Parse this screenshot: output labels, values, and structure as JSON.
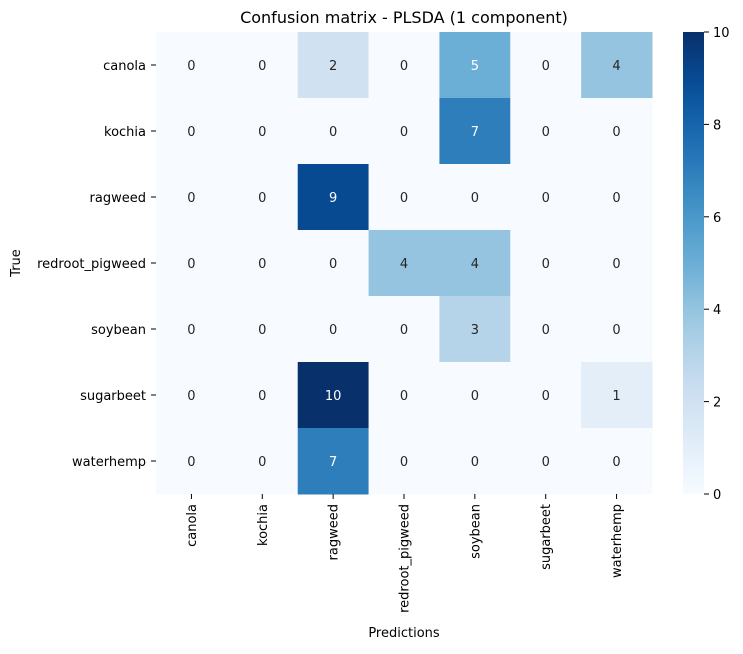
{
  "chart_data": {
    "type": "heatmap",
    "title": "Confusion matrix - PLSDA (1 component)",
    "xlabel": "Predictions",
    "ylabel": "True",
    "x_categories": [
      "canola",
      "kochia",
      "ragweed",
      "redroot_pigweed",
      "soybean",
      "sugarbeet",
      "waterhemp"
    ],
    "y_categories": [
      "canola",
      "kochia",
      "ragweed",
      "redroot_pigweed",
      "soybean",
      "sugarbeet",
      "waterhemp"
    ],
    "values": [
      [
        0,
        0,
        2,
        0,
        5,
        0,
        4
      ],
      [
        0,
        0,
        0,
        0,
        7,
        0,
        0
      ],
      [
        0,
        0,
        9,
        0,
        0,
        0,
        0
      ],
      [
        0,
        0,
        0,
        4,
        4,
        0,
        0
      ],
      [
        0,
        0,
        0,
        0,
        3,
        0,
        0
      ],
      [
        0,
        0,
        10,
        0,
        0,
        0,
        1
      ],
      [
        0,
        0,
        7,
        0,
        0,
        0,
        0
      ]
    ],
    "colorbar": {
      "min": 0,
      "max": 10,
      "ticks": [
        0,
        2,
        4,
        6,
        8,
        10
      ],
      "colormap": "Blues"
    },
    "annotations": true,
    "grid": false
  }
}
